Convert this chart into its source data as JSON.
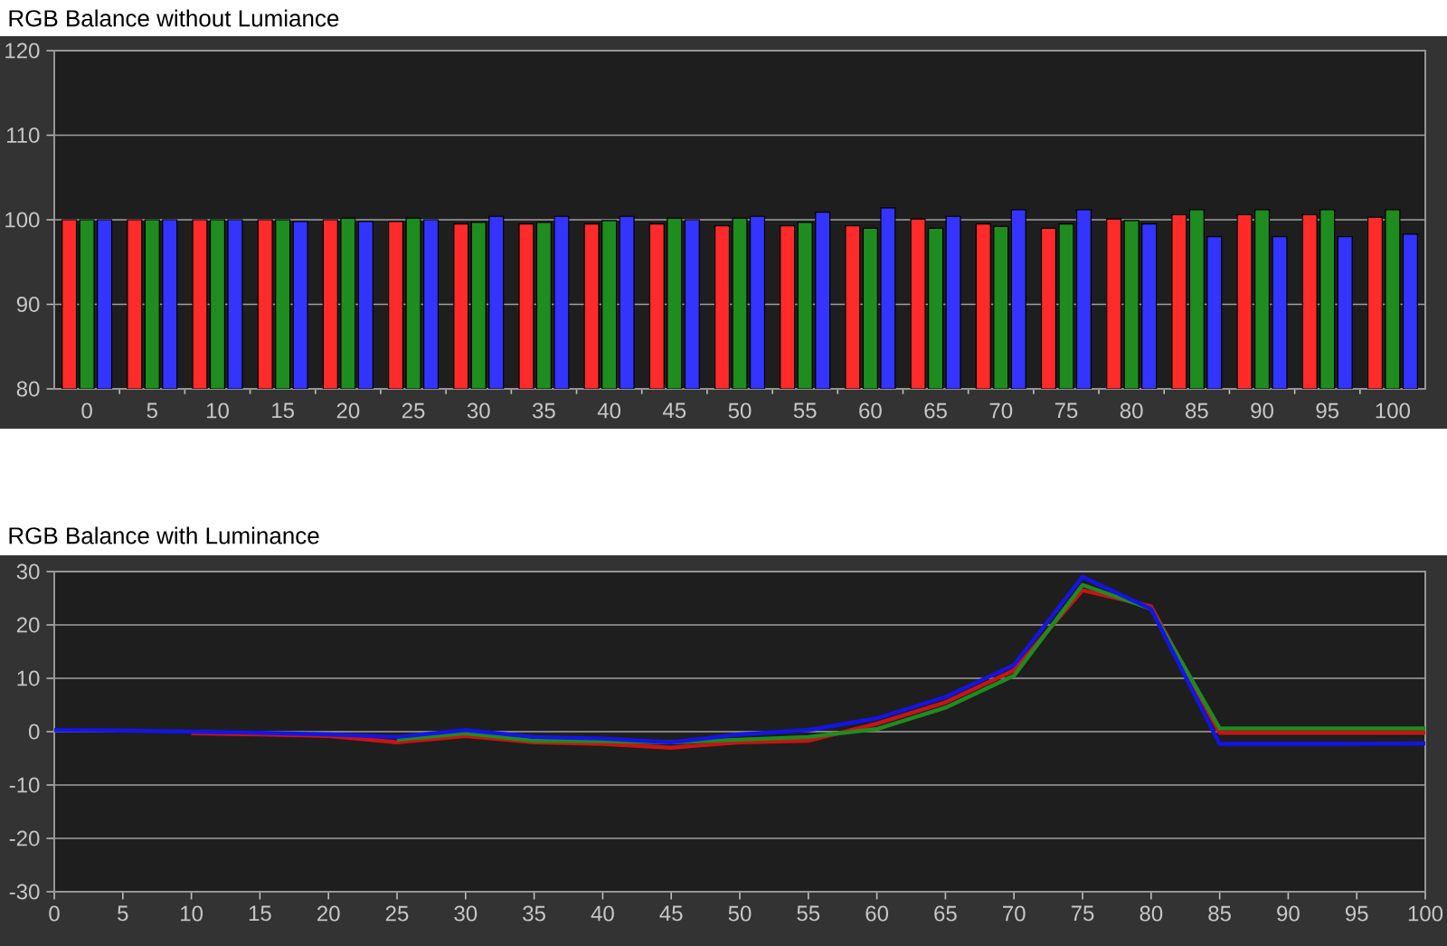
{
  "chart_data": [
    {
      "type": "bar",
      "title": "RGB Balance without Lumiance",
      "categories": [
        "0",
        "5",
        "10",
        "15",
        "20",
        "25",
        "30",
        "35",
        "40",
        "45",
        "50",
        "55",
        "60",
        "65",
        "70",
        "75",
        "80",
        "85",
        "90",
        "95",
        "100"
      ],
      "series": [
        {
          "color": "#ff2a2a",
          "values": [
            100,
            100,
            100,
            100,
            100,
            99.8,
            99.5,
            99.5,
            99.5,
            99.5,
            99.3,
            99.3,
            99.3,
            100.1,
            99.5,
            99,
            100.1,
            100.6,
            100.6,
            100.6,
            100.3
          ]
        },
        {
          "color": "#1e8c1e",
          "values": [
            100,
            100,
            100,
            100,
            100.2,
            100.2,
            99.7,
            99.7,
            99.9,
            100.2,
            100.2,
            99.7,
            99,
            99,
            99.2,
            99.5,
            99.9,
            101.2,
            101.2,
            101.2,
            101.2
          ]
        },
        {
          "color": "#3434ff",
          "values": [
            100,
            100,
            100,
            99.8,
            99.8,
            100,
            100.4,
            100.4,
            100.4,
            100,
            100.4,
            100.9,
            101.4,
            100.4,
            101.2,
            101.2,
            99.5,
            98,
            98,
            98,
            98.3
          ]
        }
      ],
      "ylim": [
        80,
        120
      ],
      "yticks": [
        80,
        90,
        100,
        110,
        120
      ],
      "grid": "y"
    },
    {
      "type": "line",
      "title": "RGB Balance with Luminance",
      "x": [
        0,
        5,
        10,
        15,
        20,
        25,
        30,
        35,
        40,
        45,
        50,
        55,
        60,
        65,
        70,
        75,
        80,
        85,
        90,
        95,
        100
      ],
      "series": [
        {
          "color": "#c81414",
          "values": [
            null,
            null,
            -0.3,
            -0.5,
            -0.8,
            -2,
            -0.8,
            -2,
            -2.3,
            -3,
            -2,
            -1.7,
            1.5,
            5.5,
            11.5,
            26.5,
            23.5,
            -0.2,
            -0.2,
            -0.2,
            -0.2
          ]
        },
        {
          "color": "#1e8c1e",
          "values": [
            null,
            null,
            null,
            null,
            null,
            -1.5,
            -0.3,
            -1.7,
            -1.8,
            -2,
            -1.5,
            -1,
            0.5,
            4.5,
            10.5,
            27.5,
            23,
            0.6,
            0.6,
            0.6,
            0.6
          ]
        },
        {
          "color": "#1414e6",
          "values": [
            0.3,
            0.2,
            0,
            -0.2,
            -0.5,
            -1,
            0.3,
            -1,
            -1.3,
            -2,
            -0.5,
            0.3,
            2.5,
            6.5,
            12.5,
            29,
            23,
            -2.3,
            -2.3,
            -2.3,
            -2.2
          ]
        }
      ],
      "xlim": [
        0,
        100
      ],
      "xticks": [
        0,
        5,
        10,
        15,
        20,
        25,
        30,
        35,
        40,
        45,
        50,
        55,
        60,
        65,
        70,
        75,
        80,
        85,
        90,
        95,
        100
      ],
      "ylim": [
        -30,
        30
      ],
      "yticks": [
        -30,
        -20,
        -10,
        0,
        10,
        20,
        30
      ],
      "grid": "y"
    }
  ]
}
